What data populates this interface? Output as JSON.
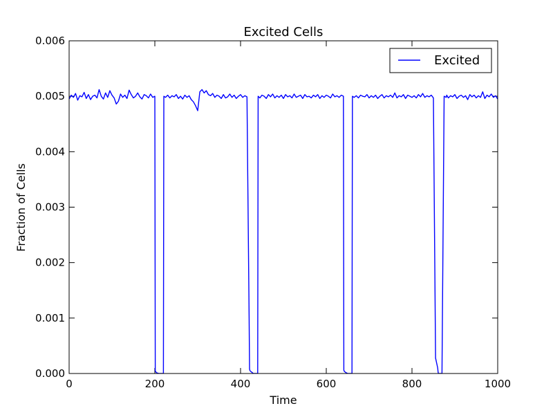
{
  "chart_data": {
    "type": "line",
    "title": "Excited Cells",
    "xlabel": "Time",
    "ylabel": "Fraction of Cells",
    "xlim": [
      0,
      1000
    ],
    "ylim": [
      0,
      0.006
    ],
    "xticks": [
      "0",
      "200",
      "400",
      "600",
      "800",
      "1000"
    ],
    "yticks": [
      "0.000",
      "0.001",
      "0.002",
      "0.003",
      "0.004",
      "0.005",
      "0.006"
    ],
    "grid": false,
    "legend": {
      "position": "top-right",
      "entries": [
        "Excited"
      ]
    },
    "series": [
      {
        "name": "Excited",
        "color": "#0000ff",
        "x": [
          0,
          5,
          10,
          15,
          20,
          25,
          30,
          35,
          40,
          45,
          50,
          55,
          60,
          65,
          70,
          75,
          80,
          85,
          90,
          95,
          100,
          105,
          110,
          115,
          120,
          125,
          130,
          135,
          140,
          145,
          150,
          155,
          160,
          165,
          170,
          175,
          180,
          185,
          190,
          195,
          200,
          201,
          202,
          205,
          210,
          215,
          220,
          221,
          225,
          230,
          235,
          240,
          245,
          250,
          255,
          260,
          265,
          270,
          275,
          280,
          285,
          290,
          295,
          300,
          305,
          310,
          315,
          320,
          325,
          330,
          335,
          340,
          345,
          350,
          355,
          360,
          365,
          370,
          375,
          380,
          385,
          390,
          395,
          400,
          405,
          410,
          415,
          420,
          421,
          422,
          425,
          430,
          435,
          440,
          441,
          445,
          450,
          455,
          460,
          465,
          470,
          475,
          480,
          485,
          490,
          495,
          500,
          505,
          510,
          515,
          520,
          525,
          530,
          535,
          540,
          545,
          550,
          555,
          560,
          565,
          570,
          575,
          580,
          585,
          590,
          595,
          600,
          605,
          610,
          615,
          620,
          625,
          630,
          635,
          640,
          641,
          642,
          645,
          650,
          655,
          660,
          661,
          665,
          670,
          675,
          680,
          685,
          690,
          695,
          700,
          705,
          710,
          715,
          720,
          725,
          730,
          735,
          740,
          745,
          750,
          755,
          760,
          765,
          770,
          775,
          780,
          785,
          790,
          795,
          800,
          805,
          810,
          815,
          820,
          825,
          830,
          835,
          840,
          845,
          850,
          855,
          860,
          861,
          862,
          865,
          870,
          875,
          880,
          881,
          885,
          890,
          895,
          900,
          905,
          910,
          915,
          920,
          925,
          930,
          935,
          940,
          945,
          950,
          955,
          960,
          965,
          970,
          975,
          980,
          985,
          990,
          995,
          1000
        ],
        "y": [
          0.00495,
          0.00502,
          0.00498,
          0.00505,
          0.00493,
          0.00501,
          0.00499,
          0.00507,
          0.00496,
          0.00503,
          0.00494,
          0.005,
          0.00502,
          0.00497,
          0.00512,
          0.005,
          0.00495,
          0.00506,
          0.00498,
          0.0051,
          0.00502,
          0.00497,
          0.00486,
          0.00491,
          0.00504,
          0.00498,
          0.00502,
          0.00496,
          0.00511,
          0.00503,
          0.00497,
          0.005,
          0.00506,
          0.00499,
          0.00495,
          0.00503,
          0.00501,
          0.00497,
          0.00504,
          0.00498,
          0.005,
          5e-05,
          3e-05,
          1e-05,
          0.0,
          0.0,
          0.0,
          0.005,
          0.00498,
          0.00502,
          0.00497,
          0.00501,
          0.00499,
          0.00503,
          0.00496,
          0.005,
          0.00495,
          0.00502,
          0.00498,
          0.00501,
          0.00494,
          0.0049,
          0.00483,
          0.00474,
          0.00508,
          0.00512,
          0.00506,
          0.0051,
          0.00503,
          0.00501,
          0.00505,
          0.00498,
          0.00502,
          0.005,
          0.00496,
          0.00503,
          0.00497,
          0.00499,
          0.00504,
          0.00498,
          0.00502,
          0.00496,
          0.005,
          0.00503,
          0.00498,
          0.00501,
          0.00499,
          0.001,
          8e-05,
          5e-05,
          3e-05,
          0.0,
          0.0,
          0.0,
          0.005,
          0.00497,
          0.00502,
          0.005,
          0.00496,
          0.00503,
          0.00499,
          0.00504,
          0.00497,
          0.00501,
          0.00498,
          0.00502,
          0.00496,
          0.00503,
          0.00499,
          0.00501,
          0.00497,
          0.00504,
          0.00498,
          0.005,
          0.00502,
          0.00496,
          0.00503,
          0.00499,
          0.005,
          0.00497,
          0.00502,
          0.00499,
          0.00503,
          0.00496,
          0.00501,
          0.00498,
          0.00502,
          0.005,
          0.00497,
          0.00504,
          0.00499,
          0.00501,
          0.00498,
          0.00502,
          0.005,
          6e-05,
          4e-05,
          2e-05,
          0.0,
          0.0,
          0.0,
          0.005,
          0.00498,
          0.00501,
          0.00497,
          0.00502,
          0.005,
          0.00499,
          0.00503,
          0.00497,
          0.00501,
          0.00498,
          0.00502,
          0.00496,
          0.005,
          0.00503,
          0.00497,
          0.00501,
          0.00499,
          0.00502,
          0.00498,
          0.00506,
          0.00497,
          0.00501,
          0.00499,
          0.00503,
          0.00496,
          0.00502,
          0.005,
          0.00498,
          0.00501,
          0.00497,
          0.00503,
          0.00499,
          0.00505,
          0.00498,
          0.00501,
          0.00499,
          0.00502,
          0.00497,
          0.00028,
          0.0001,
          2e-05,
          0.0,
          0.0,
          0.0,
          0.005,
          0.00498,
          0.00502,
          0.00497,
          0.00501,
          0.00499,
          0.00503,
          0.00496,
          0.005,
          0.00502,
          0.00498,
          0.00501,
          0.00494,
          0.00503,
          0.00499,
          0.00502,
          0.00497,
          0.00501,
          0.00498,
          0.00508,
          0.00496,
          0.00502,
          0.00499,
          0.00504,
          0.00498,
          0.00501,
          0.00495
        ]
      }
    ]
  }
}
